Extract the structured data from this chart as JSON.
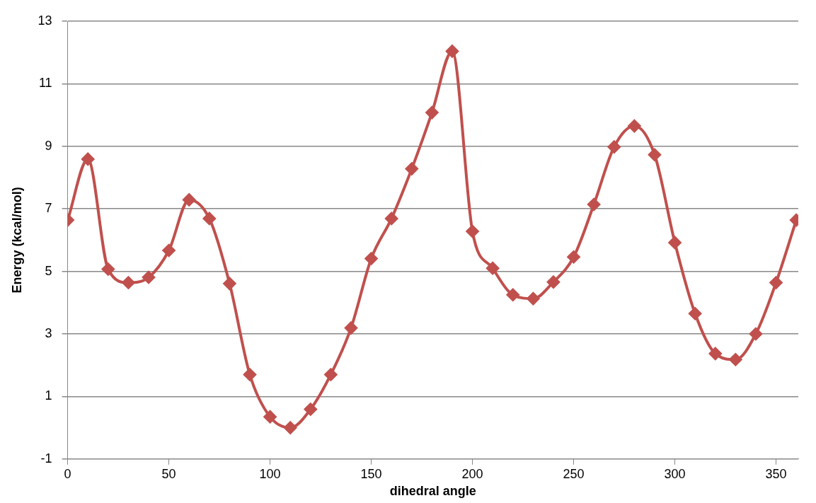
{
  "chart_data": {
    "type": "line",
    "xlabel": "dihedral angle",
    "ylabel": "Energy (kcal/mol)",
    "x": [
      0,
      10,
      20,
      30,
      40,
      50,
      60,
      70,
      80,
      90,
      100,
      110,
      120,
      130,
      140,
      150,
      160,
      170,
      180,
      190,
      200,
      210,
      220,
      230,
      240,
      250,
      260,
      270,
      280,
      290,
      300,
      310,
      320,
      330,
      340,
      350,
      360
    ],
    "series": [
      {
        "color": "#c0504d",
        "values": [
          6.64,
          8.59,
          5.07,
          4.64,
          4.81,
          5.67,
          7.29,
          6.69,
          4.61,
          1.7,
          0.35,
          0,
          0.59,
          1.7,
          3.19,
          5.41,
          6.69,
          8.28,
          10.08,
          12.04,
          6.28,
          5.1,
          4.25,
          4.13,
          4.66,
          5.46,
          7.14,
          8.98,
          9.65,
          8.73,
          5.92,
          3.65,
          2.37,
          2.18,
          3.0,
          4.64,
          6.64
        ]
      }
    ],
    "xlim": [
      0,
      361
    ],
    "xticks": [
      0,
      50,
      100,
      150,
      200,
      250,
      300,
      350
    ],
    "ylim": [
      -1,
      13
    ],
    "yticks": [
      -1,
      1,
      3,
      5,
      7,
      9,
      11,
      13
    ],
    "grid": "y",
    "legend": false,
    "marker": "diamond",
    "line_style": "solid"
  }
}
